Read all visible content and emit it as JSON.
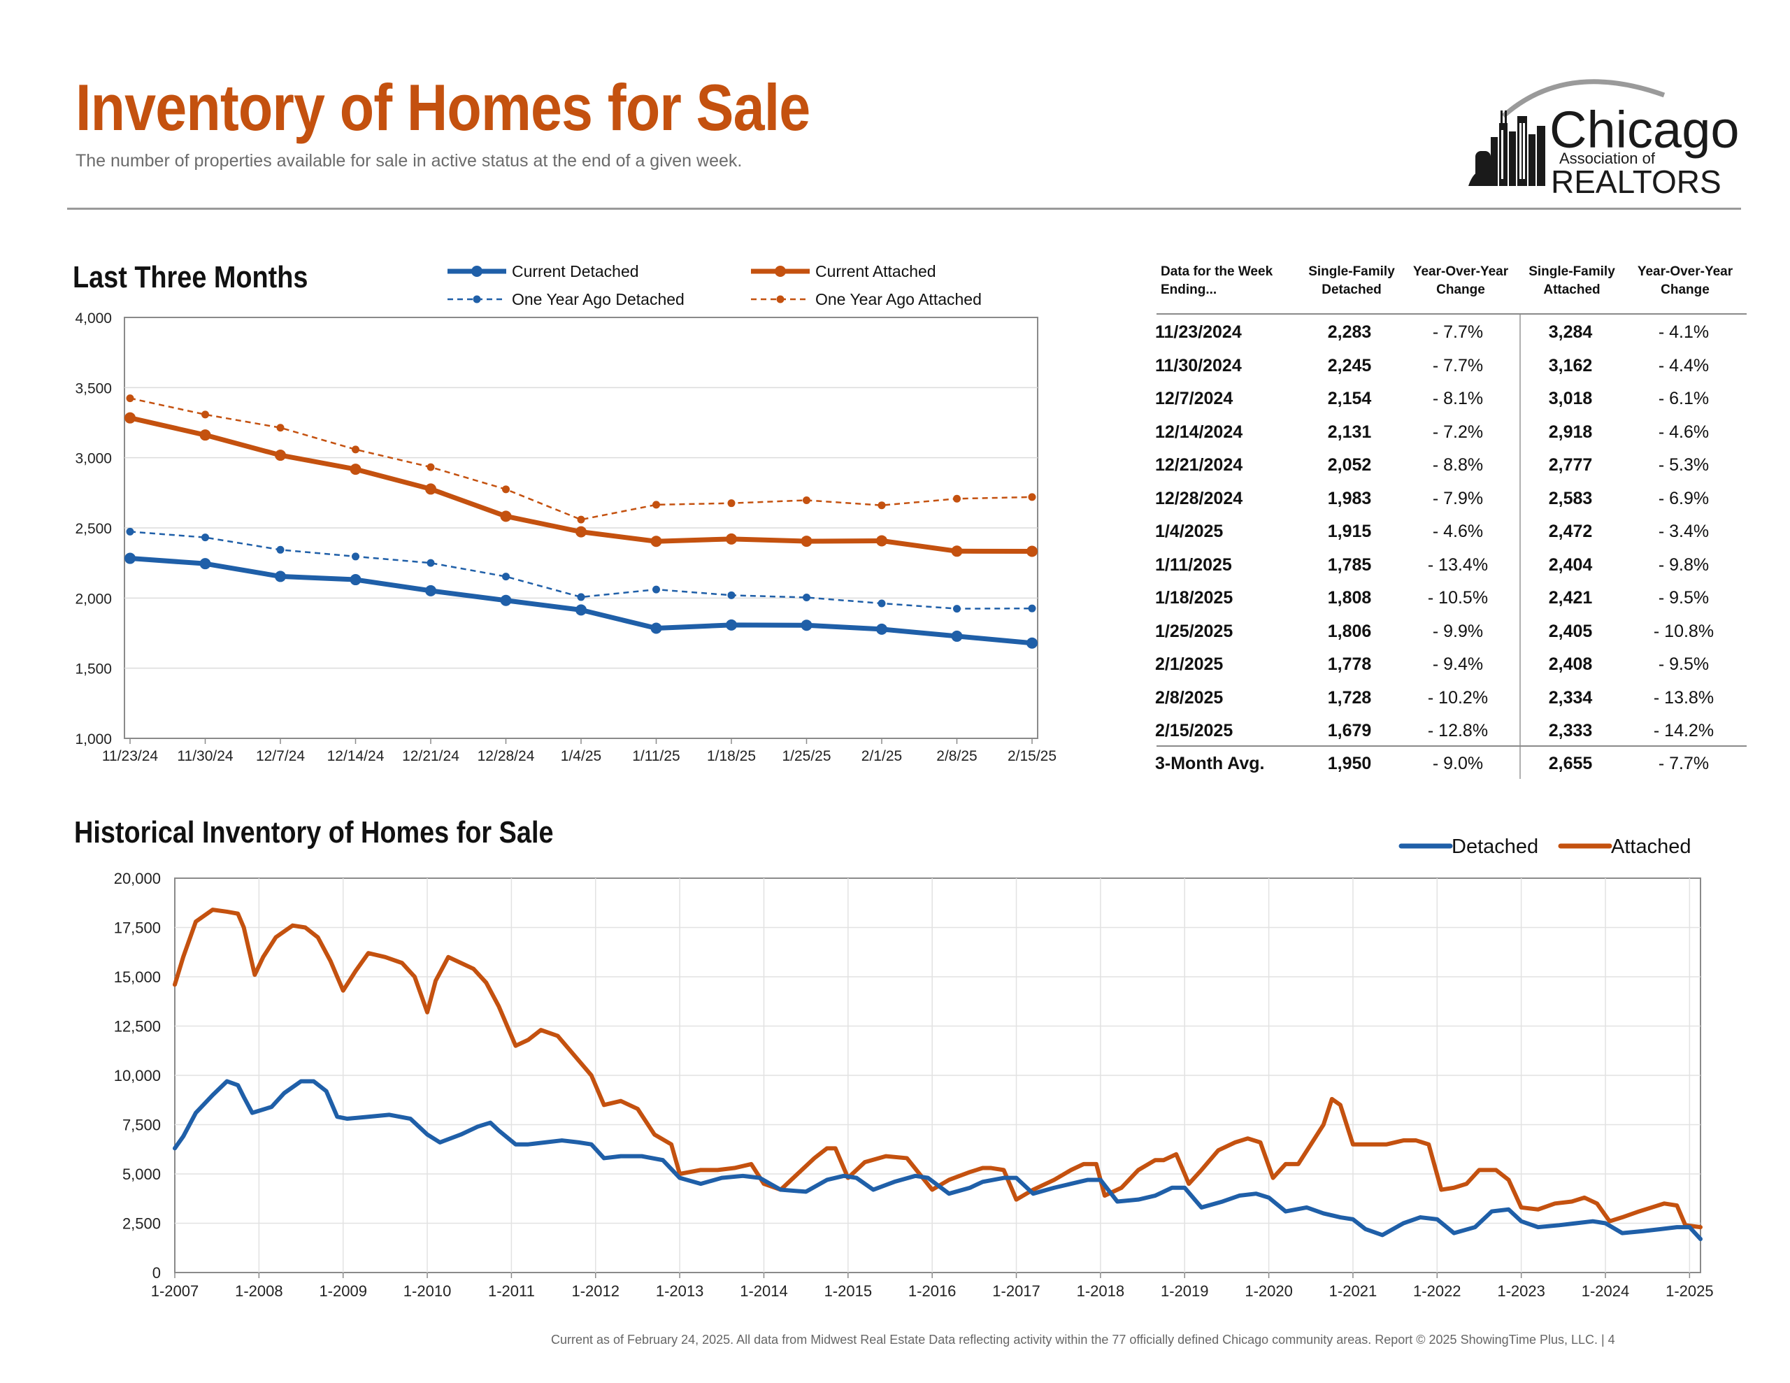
{
  "header": {
    "title": "Inventory of Homes for Sale",
    "subtitle": "The number of properties available for sale in active status at the end of a given week."
  },
  "logo": {
    "line1": "Chicago",
    "line2": "Association of",
    "line3": "REALTORS"
  },
  "colors": {
    "detached": "#1f5fa8",
    "attached": "#c4510f",
    "title": "#c4510f"
  },
  "footer": "Current as of February 24, 2025.  All data from Midwest Real Estate Data reflecting activity within the 77 officially defined Chicago community areas. Report © 2025 ShowingTime Plus, LLC.  |  4",
  "table": {
    "headers": [
      "Data for the Week Ending...",
      "Single-Family Detached",
      "Year-Over-Year Change",
      "Single-Family Attached",
      "Year-Over-Year Change"
    ],
    "rows": [
      [
        "11/23/2024",
        "2,283",
        "- 7.7%",
        "3,284",
        "- 4.1%"
      ],
      [
        "11/30/2024",
        "2,245",
        "- 7.7%",
        "3,162",
        "- 4.4%"
      ],
      [
        "12/7/2024",
        "2,154",
        "- 8.1%",
        "3,018",
        "- 6.1%"
      ],
      [
        "12/14/2024",
        "2,131",
        "- 7.2%",
        "2,918",
        "- 4.6%"
      ],
      [
        "12/21/2024",
        "2,052",
        "- 8.8%",
        "2,777",
        "- 5.3%"
      ],
      [
        "12/28/2024",
        "1,983",
        "- 7.9%",
        "2,583",
        "- 6.9%"
      ],
      [
        "1/4/2025",
        "1,915",
        "- 4.6%",
        "2,472",
        "- 3.4%"
      ],
      [
        "1/11/2025",
        "1,785",
        "- 13.4%",
        "2,404",
        "- 9.8%"
      ],
      [
        "1/18/2025",
        "1,808",
        "- 10.5%",
        "2,421",
        "- 9.5%"
      ],
      [
        "1/25/2025",
        "1,806",
        "- 9.9%",
        "2,405",
        "- 10.8%"
      ],
      [
        "2/1/2025",
        "1,778",
        "- 9.4%",
        "2,408",
        "- 9.5%"
      ],
      [
        "2/8/2025",
        "1,728",
        "- 10.2%",
        "2,334",
        "- 13.8%"
      ],
      [
        "2/15/2025",
        "1,679",
        "- 12.8%",
        "2,333",
        "- 14.2%"
      ]
    ],
    "average": [
      "3-Month Avg.",
      "1,950",
      "- 9.0%",
      "2,655",
      "- 7.7%"
    ]
  },
  "chart_data": [
    {
      "type": "line",
      "title": "Last Three Months",
      "categories": [
        "11/23/24",
        "11/30/24",
        "12/7/24",
        "12/14/24",
        "12/21/24",
        "12/28/24",
        "1/4/25",
        "1/11/25",
        "1/18/25",
        "1/25/25",
        "2/1/25",
        "2/8/25",
        "2/15/25"
      ],
      "yticks": [
        "1,000",
        "1,500",
        "2,000",
        "2,500",
        "3,000",
        "3,500",
        "4,000"
      ],
      "ylim": [
        1000,
        4000
      ],
      "grid": true,
      "legend_position": "top",
      "series": [
        {
          "name": "Current Detached",
          "style": "solid",
          "color": "#1f5fa8",
          "values": [
            2283,
            2245,
            2154,
            2131,
            2052,
            1983,
            1915,
            1785,
            1808,
            1806,
            1778,
            1728,
            1679
          ]
        },
        {
          "name": "Current Attached",
          "style": "solid",
          "color": "#c4510f",
          "values": [
            3284,
            3162,
            3018,
            2918,
            2777,
            2583,
            2472,
            2404,
            2421,
            2405,
            2408,
            2334,
            2333
          ]
        },
        {
          "name": "One Year Ago Detached",
          "style": "dashed",
          "color": "#1f5fa8",
          "values": [
            2473,
            2432,
            2344,
            2296,
            2250,
            2153,
            2007,
            2061,
            2020,
            2004,
            1962,
            1924,
            1926
          ]
        },
        {
          "name": "One Year Ago Attached",
          "style": "dashed",
          "color": "#c4510f",
          "values": [
            3424,
            3308,
            3214,
            3059,
            2933,
            2775,
            2559,
            2665,
            2676,
            2697,
            2661,
            2708,
            2720
          ]
        }
      ]
    },
    {
      "type": "line",
      "title": "Historical Inventory of Homes for Sale",
      "xticks": [
        "1-2007",
        "1-2008",
        "1-2009",
        "1-2010",
        "1-2011",
        "1-2012",
        "1-2013",
        "1-2014",
        "1-2015",
        "1-2016",
        "1-2017",
        "1-2018",
        "1-2019",
        "1-2020",
        "1-2021",
        "1-2022",
        "1-2023",
        "1-2024",
        "1-2025"
      ],
      "xlim": [
        2007.0,
        2025.13
      ],
      "yticks": [
        "0",
        "2,500",
        "5,000",
        "7,500",
        "10,000",
        "12,500",
        "15,000",
        "17,500",
        "20,000"
      ],
      "ylim": [
        0,
        20000
      ],
      "grid": true,
      "legend_position": "top-right",
      "series": [
        {
          "name": "Detached",
          "color": "#1f5fa8",
          "x": [
            2007.0,
            2007.1,
            2007.25,
            2007.45,
            2007.62,
            2007.75,
            2007.82,
            2007.92,
            2008.15,
            2008.3,
            2008.5,
            2008.65,
            2008.8,
            2008.93,
            2009.05,
            2009.3,
            2009.55,
            2009.8,
            2010.0,
            2010.15,
            2010.4,
            2010.6,
            2010.75,
            2010.85,
            2011.05,
            2011.2,
            2011.4,
            2011.6,
            2011.8,
            2011.95,
            2012.1,
            2012.3,
            2012.55,
            2012.8,
            2013.0,
            2013.25,
            2013.5,
            2013.75,
            2013.95,
            2014.2,
            2014.5,
            2014.75,
            2014.95,
            2015.1,
            2015.3,
            2015.55,
            2015.8,
            2015.95,
            2016.2,
            2016.45,
            2016.6,
            2016.85,
            2017.0,
            2017.2,
            2017.45,
            2017.65,
            2017.85,
            2018.0,
            2018.2,
            2018.45,
            2018.65,
            2018.85,
            2019.0,
            2019.2,
            2019.45,
            2019.65,
            2019.85,
            2020.0,
            2020.2,
            2020.45,
            2020.65,
            2020.85,
            2021.0,
            2021.15,
            2021.35,
            2021.6,
            2021.8,
            2022.0,
            2022.2,
            2022.45,
            2022.65,
            2022.85,
            2023.0,
            2023.2,
            2023.45,
            2023.65,
            2023.85,
            2024.0,
            2024.2,
            2024.45,
            2024.65,
            2024.85,
            2025.0,
            2025.13
          ],
          "y": [
            6300,
            6900,
            8100,
            9000,
            9700,
            9500,
            8900,
            8100,
            8400,
            9100,
            9700,
            9700,
            9200,
            7900,
            7800,
            7900,
            8000,
            7800,
            7000,
            6600,
            7000,
            7400,
            7600,
            7200,
            6500,
            6500,
            6600,
            6700,
            6600,
            6500,
            5800,
            5900,
            5900,
            5700,
            4800,
            4500,
            4800,
            4900,
            4800,
            4200,
            4100,
            4700,
            4900,
            4800,
            4200,
            4600,
            4900,
            4800,
            4000,
            4300,
            4600,
            4800,
            4800,
            4000,
            4300,
            4500,
            4700,
            4700,
            3600,
            3700,
            3900,
            4300,
            4300,
            3300,
            3600,
            3900,
            4000,
            3800,
            3100,
            3300,
            3000,
            2800,
            2700,
            2200,
            1900,
            2500,
            2800,
            2700,
            2000,
            2300,
            3100,
            3200,
            2600,
            2300,
            2400,
            2500,
            2600,
            2500,
            2000,
            2100,
            2200,
            2300,
            2300,
            1700
          ]
        },
        {
          "name": "Attached",
          "color": "#c4510f",
          "x": [
            2007.0,
            2007.1,
            2007.25,
            2007.45,
            2007.62,
            2007.75,
            2007.82,
            2007.95,
            2008.05,
            2008.2,
            2008.4,
            2008.55,
            2008.7,
            2008.85,
            2009.0,
            2009.15,
            2009.3,
            2009.5,
            2009.7,
            2009.85,
            2010.0,
            2010.1,
            2010.25,
            2010.4,
            2010.55,
            2010.7,
            2010.85,
            2011.05,
            2011.2,
            2011.35,
            2011.55,
            2011.75,
            2011.95,
            2012.1,
            2012.3,
            2012.5,
            2012.7,
            2012.9,
            2013.0,
            2013.25,
            2013.45,
            2013.65,
            2013.85,
            2014.0,
            2014.2,
            2014.4,
            2014.6,
            2014.75,
            2014.85,
            2015.0,
            2015.2,
            2015.45,
            2015.7,
            2015.85,
            2016.0,
            2016.2,
            2016.45,
            2016.6,
            2016.7,
            2016.85,
            2017.0,
            2017.2,
            2017.45,
            2017.65,
            2017.8,
            2017.95,
            2018.05,
            2018.25,
            2018.45,
            2018.65,
            2018.75,
            2018.9,
            2019.05,
            2019.2,
            2019.4,
            2019.6,
            2019.75,
            2019.9,
            2020.05,
            2020.2,
            2020.35,
            2020.5,
            2020.65,
            2020.75,
            2020.85,
            2021.0,
            2021.2,
            2021.4,
            2021.6,
            2021.75,
            2021.9,
            2022.05,
            2022.2,
            2022.35,
            2022.5,
            2022.7,
            2022.85,
            2023.0,
            2023.2,
            2023.4,
            2023.6,
            2023.75,
            2023.9,
            2024.05,
            2024.2,
            2024.4,
            2024.55,
            2024.7,
            2024.85,
            2024.95,
            2025.13
          ],
          "y": [
            14600,
            16000,
            17800,
            18400,
            18300,
            18200,
            17500,
            15100,
            16000,
            17000,
            17600,
            17500,
            17000,
            15800,
            14300,
            15300,
            16200,
            16000,
            15700,
            15000,
            13200,
            14800,
            16000,
            15700,
            15400,
            14700,
            13500,
            11500,
            11800,
            12300,
            12000,
            11000,
            10000,
            8500,
            8700,
            8300,
            7000,
            6500,
            5000,
            5200,
            5200,
            5300,
            5500,
            4500,
            4200,
            5000,
            5800,
            6300,
            6300,
            4800,
            5600,
            5900,
            5800,
            5000,
            4200,
            4700,
            5100,
            5300,
            5300,
            5200,
            3700,
            4200,
            4700,
            5200,
            5500,
            5500,
            3900,
            4300,
            5200,
            5700,
            5700,
            6000,
            4500,
            5200,
            6200,
            6600,
            6800,
            6600,
            4800,
            5500,
            5500,
            6500,
            7500,
            8800,
            8500,
            6500,
            6500,
            6500,
            6700,
            6700,
            6500,
            4200,
            4300,
            4500,
            5200,
            5200,
            4700,
            3300,
            3200,
            3500,
            3600,
            3800,
            3500,
            2600,
            2800,
            3100,
            3300,
            3500,
            3400,
            2400,
            2300
          ]
        }
      ]
    }
  ]
}
